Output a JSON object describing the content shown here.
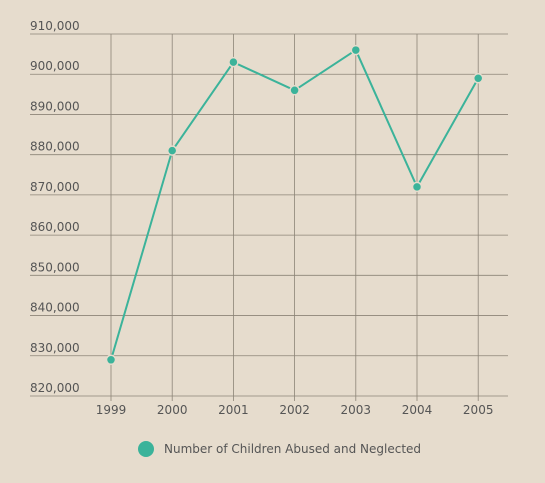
{
  "chart_data": {
    "type": "line",
    "categories": [
      "1999",
      "2000",
      "2001",
      "2002",
      "2003",
      "2004",
      "2005"
    ],
    "series": [
      {
        "name": "Number of Children Abused and Neglected",
        "values": [
          829000,
          881000,
          903000,
          896000,
          906000,
          872000,
          899000
        ],
        "color": "#3bb39a"
      }
    ],
    "ylim": [
      820000,
      910000
    ],
    "y_ticks": [
      "910,000",
      "900,000",
      "890,000",
      "880,000",
      "870,000",
      "860,000",
      "850,000",
      "840,000",
      "830,000",
      "820,000"
    ],
    "grid": true,
    "legend_position": "bottom"
  }
}
